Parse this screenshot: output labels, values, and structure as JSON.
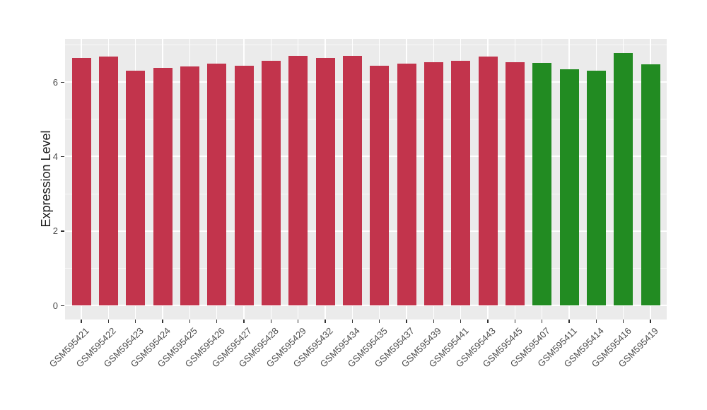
{
  "chart_data": {
    "type": "bar",
    "title": "",
    "xlabel": "",
    "ylabel": "Expression Level",
    "categories": [
      "GSM595421",
      "GSM595422",
      "GSM595423",
      "GSM595424",
      "GSM595425",
      "GSM595426",
      "GSM595427",
      "GSM595428",
      "GSM595429",
      "GSM595432",
      "GSM595434",
      "GSM595435",
      "GSM595437",
      "GSM595439",
      "GSM595441",
      "GSM595443",
      "GSM595445",
      "GSM595407",
      "GSM595411",
      "GSM595414",
      "GSM595416",
      "GSM595419"
    ],
    "values": [
      6.64,
      6.68,
      6.3,
      6.38,
      6.42,
      6.5,
      6.44,
      6.58,
      6.7,
      6.64,
      6.7,
      6.44,
      6.49,
      6.54,
      6.58,
      6.68,
      6.53,
      6.52,
      6.34,
      6.31,
      6.79,
      6.47
    ],
    "bar_groups": [
      "red",
      "red",
      "red",
      "red",
      "red",
      "red",
      "red",
      "red",
      "red",
      "red",
      "red",
      "red",
      "red",
      "red",
      "red",
      "red",
      "red",
      "green",
      "green",
      "green",
      "green",
      "green"
    ],
    "group_colors": {
      "red": "#C2344C",
      "green": "#228B22"
    },
    "yticks": [
      0,
      2,
      4,
      6
    ],
    "yticks_minor": [
      1,
      3,
      5,
      7
    ],
    "ylim": [
      -0.38,
      7.16
    ],
    "grid": true,
    "legend_position": "none",
    "panel_background": "#EBEBEB",
    "grid_color": "#FFFFFF",
    "tick_label_color": "#4D4D4D",
    "axis_tick_color": "#333333"
  }
}
